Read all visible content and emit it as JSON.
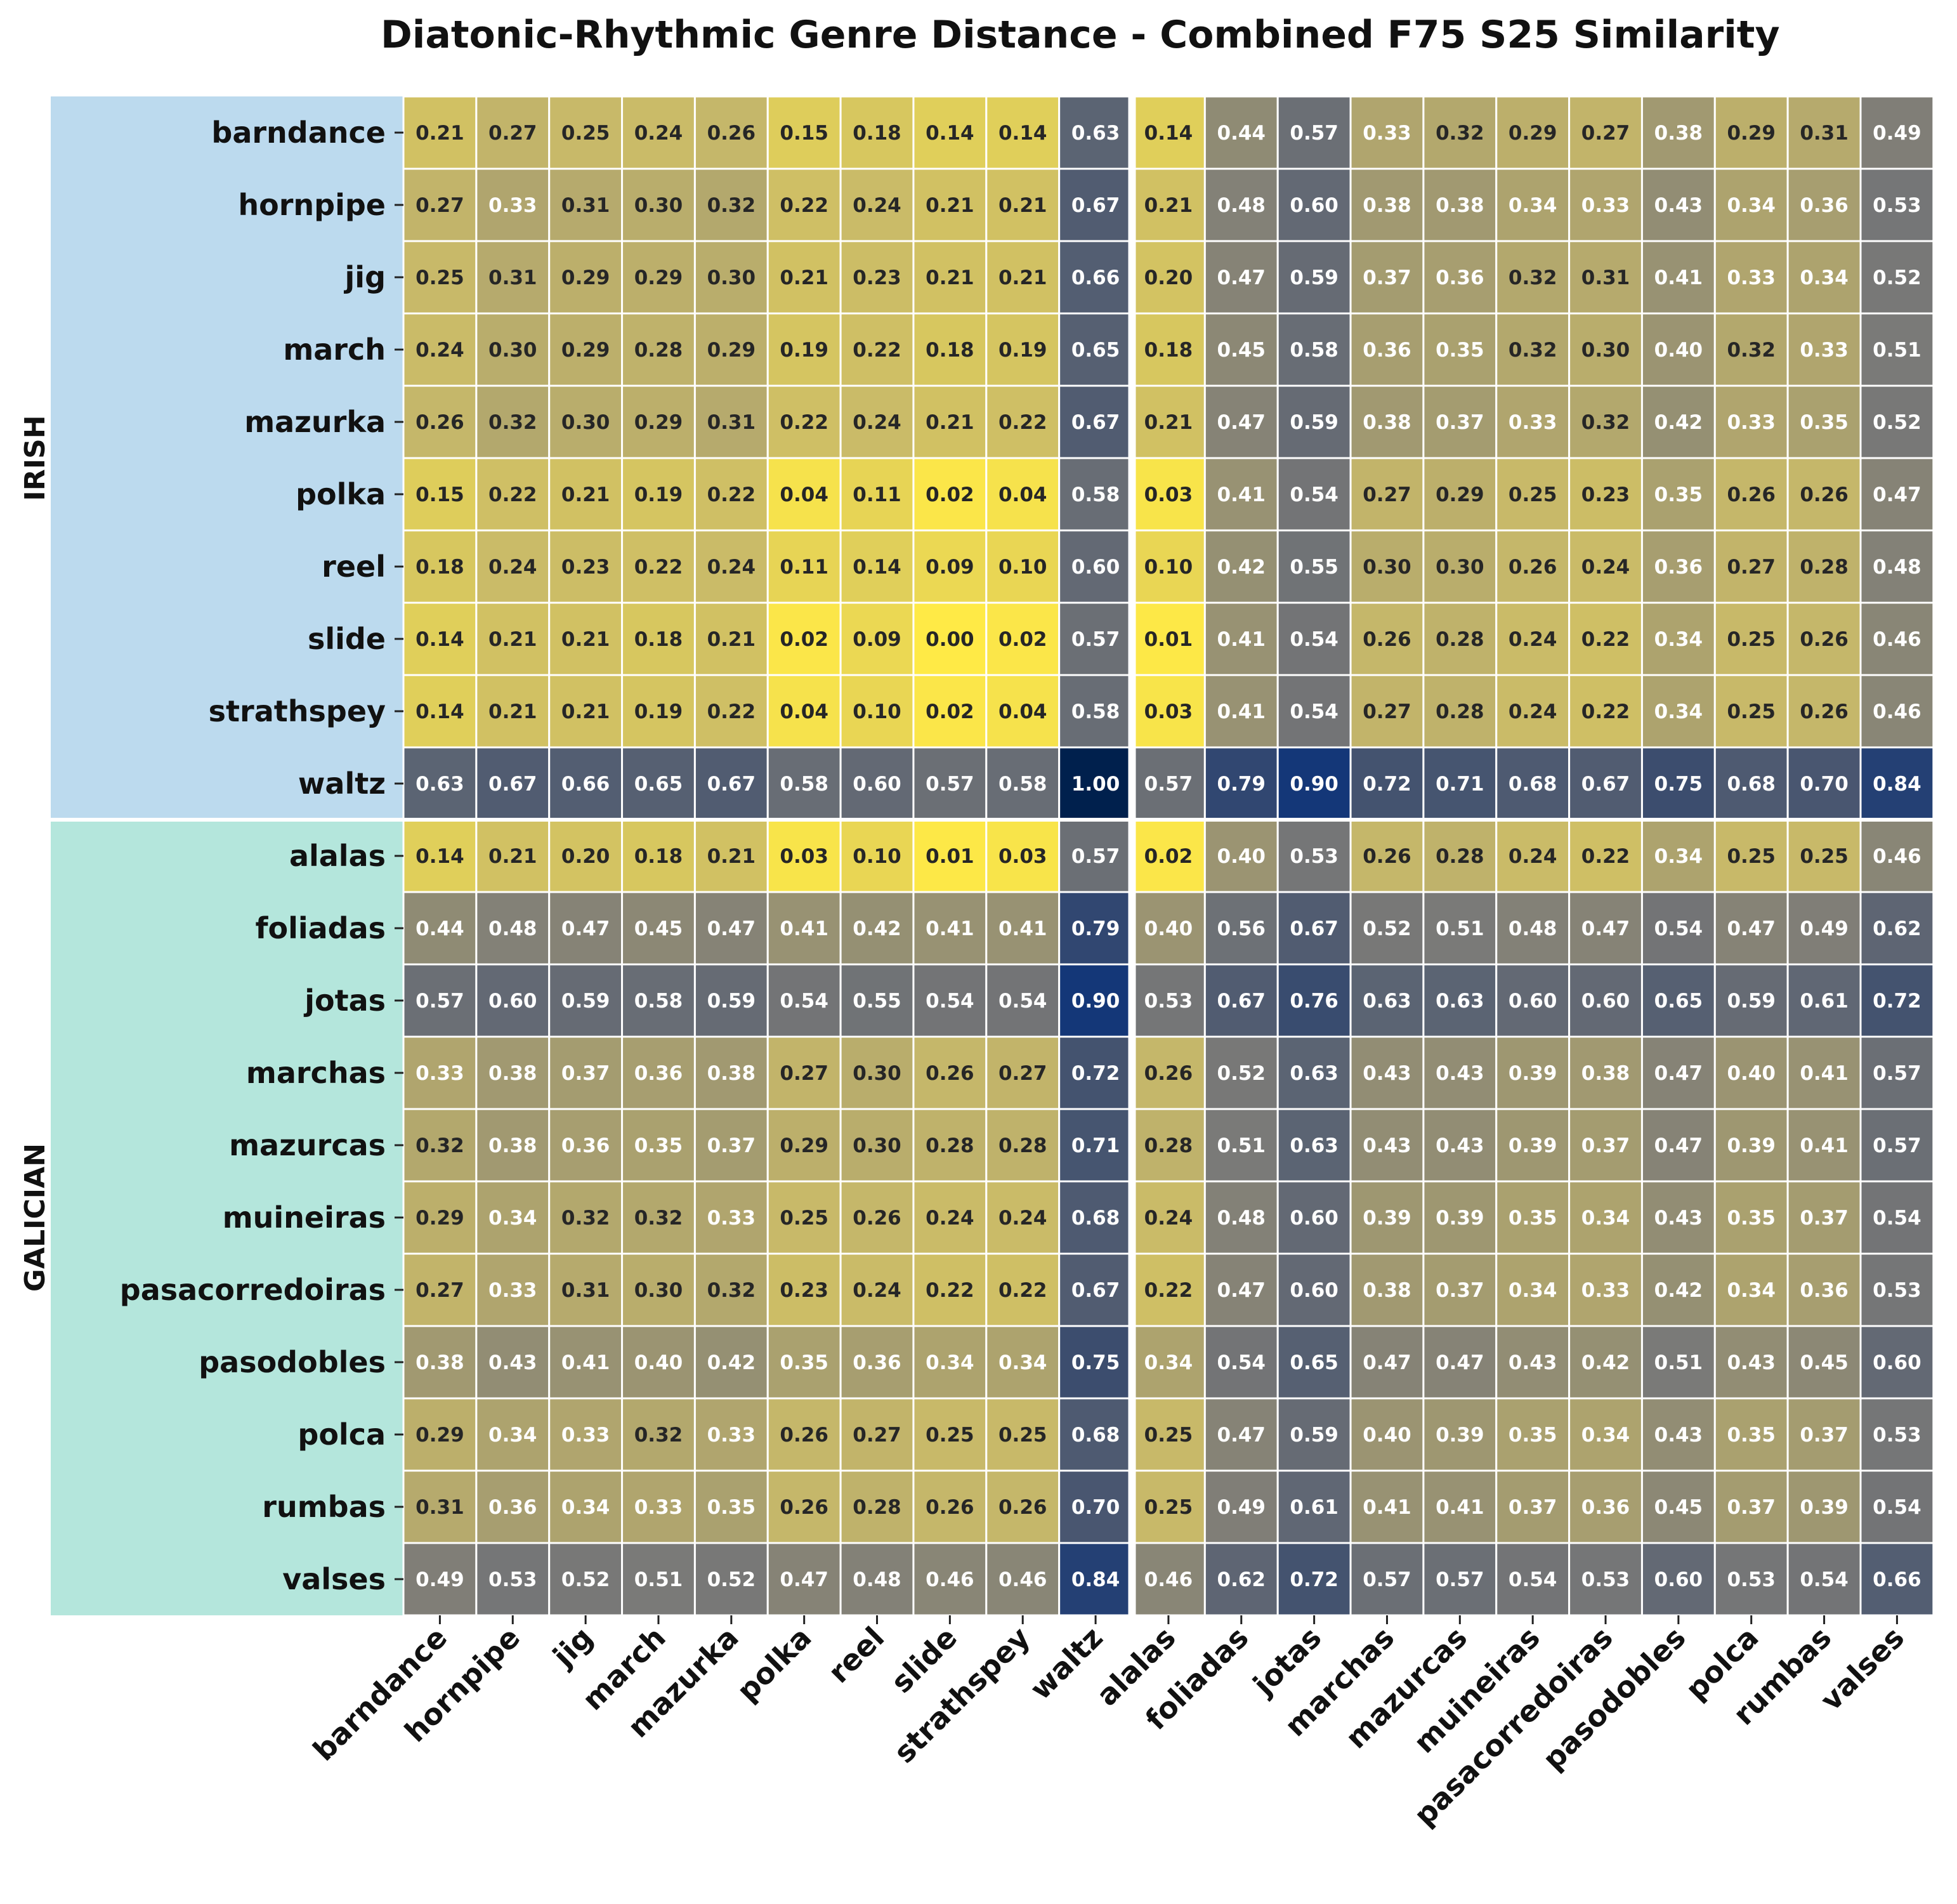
{
  "chart_data": {
    "type": "heatmap",
    "title": "Diatonic-Rhythmic Genre Distance - Combined F75 S25 Similarity",
    "xlabel": "",
    "ylabel": "",
    "colormap": "cividis_r",
    "value_range": [
      0,
      1
    ],
    "group_colors": {
      "IRISH": "#bcdaee",
      "GALICIAN": "#b4e6dc"
    },
    "groups": [
      {
        "name": "IRISH",
        "count": 10
      },
      {
        "name": "GALICIAN",
        "count": 11
      }
    ],
    "rows": [
      "barndance",
      "hornpipe",
      "jig",
      "march",
      "mazurka",
      "polka",
      "reel",
      "slide",
      "strathspey",
      "waltz",
      "alalas",
      "foliadas",
      "jotas",
      "marchas",
      "mazurcas",
      "muineiras",
      "pasacorredoiras",
      "pasodobles",
      "polca",
      "rumbas",
      "valses"
    ],
    "columns": [
      "barndance",
      "hornpipe",
      "jig",
      "march",
      "mazurka",
      "polka",
      "reel",
      "slide",
      "strathspey",
      "waltz",
      "alalas",
      "foliadas",
      "jotas",
      "marchas",
      "mazurcas",
      "muineiras",
      "pasacorredoiras",
      "pasodobles",
      "polca",
      "rumbas",
      "valses"
    ],
    "values": [
      [
        0.21,
        0.27,
        0.25,
        0.24,
        0.26,
        0.15,
        0.18,
        0.14,
        0.14,
        0.63,
        0.14,
        0.44,
        0.57,
        0.33,
        0.32,
        0.29,
        0.27,
        0.38,
        0.29,
        0.31,
        0.49
      ],
      [
        0.27,
        0.33,
        0.31,
        0.3,
        0.32,
        0.22,
        0.24,
        0.21,
        0.21,
        0.67,
        0.21,
        0.48,
        0.6,
        0.38,
        0.38,
        0.34,
        0.33,
        0.43,
        0.34,
        0.36,
        0.53
      ],
      [
        0.25,
        0.31,
        0.29,
        0.29,
        0.3,
        0.21,
        0.23,
        0.21,
        0.21,
        0.66,
        0.2,
        0.47,
        0.59,
        0.37,
        0.36,
        0.32,
        0.31,
        0.41,
        0.33,
        0.34,
        0.52
      ],
      [
        0.24,
        0.3,
        0.29,
        0.28,
        0.29,
        0.19,
        0.22,
        0.18,
        0.19,
        0.65,
        0.18,
        0.45,
        0.58,
        0.36,
        0.35,
        0.32,
        0.3,
        0.4,
        0.32,
        0.33,
        0.51
      ],
      [
        0.26,
        0.32,
        0.3,
        0.29,
        0.31,
        0.22,
        0.24,
        0.21,
        0.22,
        0.67,
        0.21,
        0.47,
        0.59,
        0.38,
        0.37,
        0.33,
        0.32,
        0.42,
        0.33,
        0.35,
        0.52
      ],
      [
        0.15,
        0.22,
        0.21,
        0.19,
        0.22,
        0.04,
        0.11,
        0.02,
        0.04,
        0.58,
        0.03,
        0.41,
        0.54,
        0.27,
        0.29,
        0.25,
        0.23,
        0.35,
        0.26,
        0.26,
        0.47
      ],
      [
        0.18,
        0.24,
        0.23,
        0.22,
        0.24,
        0.11,
        0.14,
        0.09,
        0.1,
        0.6,
        0.1,
        0.42,
        0.55,
        0.3,
        0.3,
        0.26,
        0.24,
        0.36,
        0.27,
        0.28,
        0.48
      ],
      [
        0.14,
        0.21,
        0.21,
        0.18,
        0.21,
        0.02,
        0.09,
        0.0,
        0.02,
        0.57,
        0.01,
        0.41,
        0.54,
        0.26,
        0.28,
        0.24,
        0.22,
        0.34,
        0.25,
        0.26,
        0.46
      ],
      [
        0.14,
        0.21,
        0.21,
        0.19,
        0.22,
        0.04,
        0.1,
        0.02,
        0.04,
        0.58,
        0.03,
        0.41,
        0.54,
        0.27,
        0.28,
        0.24,
        0.22,
        0.34,
        0.25,
        0.26,
        0.46
      ],
      [
        0.63,
        0.67,
        0.66,
        0.65,
        0.67,
        0.58,
        0.6,
        0.57,
        0.58,
        1.0,
        0.57,
        0.79,
        0.9,
        0.72,
        0.71,
        0.68,
        0.67,
        0.75,
        0.68,
        0.7,
        0.84
      ],
      [
        0.14,
        0.21,
        0.2,
        0.18,
        0.21,
        0.03,
        0.1,
        0.01,
        0.03,
        0.57,
        0.02,
        0.4,
        0.53,
        0.26,
        0.28,
        0.24,
        0.22,
        0.34,
        0.25,
        0.25,
        0.46
      ],
      [
        0.44,
        0.48,
        0.47,
        0.45,
        0.47,
        0.41,
        0.42,
        0.41,
        0.41,
        0.79,
        0.4,
        0.56,
        0.67,
        0.52,
        0.51,
        0.48,
        0.47,
        0.54,
        0.47,
        0.49,
        0.62
      ],
      [
        0.57,
        0.6,
        0.59,
        0.58,
        0.59,
        0.54,
        0.55,
        0.54,
        0.54,
        0.9,
        0.53,
        0.67,
        0.76,
        0.63,
        0.63,
        0.6,
        0.6,
        0.65,
        0.59,
        0.61,
        0.72
      ],
      [
        0.33,
        0.38,
        0.37,
        0.36,
        0.38,
        0.27,
        0.3,
        0.26,
        0.27,
        0.72,
        0.26,
        0.52,
        0.63,
        0.43,
        0.43,
        0.39,
        0.38,
        0.47,
        0.4,
        0.41,
        0.57
      ],
      [
        0.32,
        0.38,
        0.36,
        0.35,
        0.37,
        0.29,
        0.3,
        0.28,
        0.28,
        0.71,
        0.28,
        0.51,
        0.63,
        0.43,
        0.43,
        0.39,
        0.37,
        0.47,
        0.39,
        0.41,
        0.57
      ],
      [
        0.29,
        0.34,
        0.32,
        0.32,
        0.33,
        0.25,
        0.26,
        0.24,
        0.24,
        0.68,
        0.24,
        0.48,
        0.6,
        0.39,
        0.39,
        0.35,
        0.34,
        0.43,
        0.35,
        0.37,
        0.54
      ],
      [
        0.27,
        0.33,
        0.31,
        0.3,
        0.32,
        0.23,
        0.24,
        0.22,
        0.22,
        0.67,
        0.22,
        0.47,
        0.6,
        0.38,
        0.37,
        0.34,
        0.33,
        0.42,
        0.34,
        0.36,
        0.53
      ],
      [
        0.38,
        0.43,
        0.41,
        0.4,
        0.42,
        0.35,
        0.36,
        0.34,
        0.34,
        0.75,
        0.34,
        0.54,
        0.65,
        0.47,
        0.47,
        0.43,
        0.42,
        0.51,
        0.43,
        0.45,
        0.6
      ],
      [
        0.29,
        0.34,
        0.33,
        0.32,
        0.33,
        0.26,
        0.27,
        0.25,
        0.25,
        0.68,
        0.25,
        0.47,
        0.59,
        0.4,
        0.39,
        0.35,
        0.34,
        0.43,
        0.35,
        0.37,
        0.53
      ],
      [
        0.31,
        0.36,
        0.34,
        0.33,
        0.35,
        0.26,
        0.28,
        0.26,
        0.26,
        0.7,
        0.25,
        0.49,
        0.61,
        0.41,
        0.41,
        0.37,
        0.36,
        0.45,
        0.37,
        0.39,
        0.54
      ],
      [
        0.49,
        0.53,
        0.52,
        0.51,
        0.52,
        0.47,
        0.48,
        0.46,
        0.46,
        0.84,
        0.46,
        0.62,
        0.72,
        0.57,
        0.57,
        0.54,
        0.53,
        0.6,
        0.53,
        0.54,
        0.66
      ]
    ]
  }
}
